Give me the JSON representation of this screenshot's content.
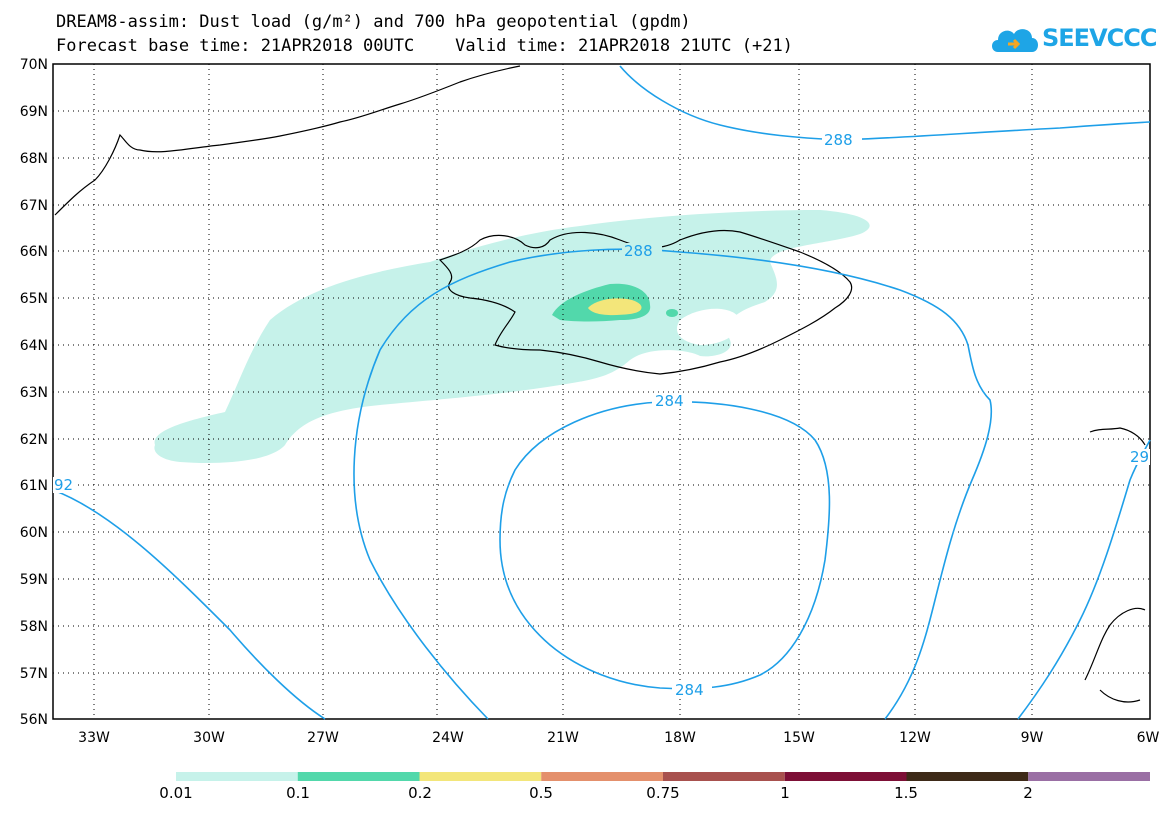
{
  "title_line1": "DREAM8-assim: Dust load (g/m²) and 700 hPa geopotential (gpdm)",
  "title_line2": "Forecast base time: 21APR2018 00UTC    Valid time: 21APR2018 21UTC (+21)",
  "logo_text": "SEEVCCC",
  "lat_labels": [
    "70N",
    "69N",
    "68N",
    "67N",
    "66N",
    "65N",
    "64N",
    "63N",
    "62N",
    "61N",
    "60N",
    "59N",
    "58N",
    "57N",
    "56N"
  ],
  "lon_labels": [
    "33W",
    "30W",
    "27W",
    "24W",
    "21W",
    "18W",
    "15W",
    "12W",
    "9W",
    "6W"
  ],
  "contour_labels": [
    "288",
    "288",
    "284",
    "284",
    "92",
    "29"
  ],
  "colorbar": {
    "labels": [
      "0.01",
      "0.1",
      "0.2",
      "0.5",
      "0.75",
      "1",
      "1.5",
      "2"
    ],
    "colors": [
      "#c6f2ea",
      "#52d8ab",
      "#f3e67a",
      "#e4906c",
      "#a8514e",
      "#7d0f36",
      "#3e2a18",
      "#9a6fa4"
    ]
  }
}
